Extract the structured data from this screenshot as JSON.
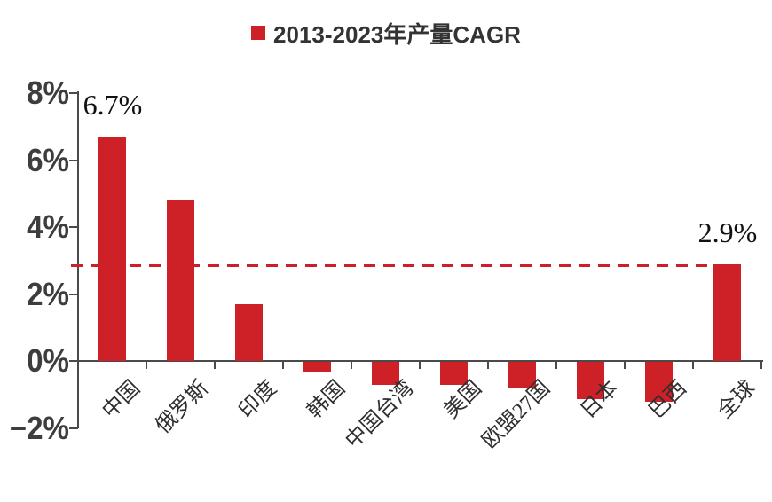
{
  "colors": {
    "bar": "#CE2127",
    "reference_line": "#CB2027",
    "axis": "#4a4a4a",
    "tick_text": "#3d3d3d",
    "legend_text": "#333333",
    "data_label_text": "#111111"
  },
  "chart_data": {
    "type": "bar",
    "title": "2013-2023年产量CAGR",
    "legend": [
      "2013-2023年产量CAGR"
    ],
    "legend_position": "top",
    "categories": [
      "中国",
      "俄罗斯",
      "印度",
      "韩国",
      "中国台湾",
      "美国",
      "欧盟27国",
      "日本",
      "巴西",
      "全球"
    ],
    "values": [
      6.7,
      4.8,
      1.7,
      -0.3,
      -0.7,
      -0.7,
      -0.8,
      -1.1,
      -1.2,
      2.9
    ],
    "data_labels": [
      "6.7%",
      "",
      "",
      "",
      "",
      "",
      "",
      "",
      "",
      "2.9%"
    ],
    "xlabel": "",
    "ylabel": "",
    "ylim": [
      -2,
      8
    ],
    "yticks": [
      8,
      6,
      4,
      2,
      0,
      -2
    ],
    "ytick_labels": [
      "8%",
      "6%",
      "4%",
      "2%",
      "0%",
      "−2%"
    ],
    "grid": false,
    "reference_line": {
      "value": 2.85,
      "style": "dashed"
    }
  }
}
